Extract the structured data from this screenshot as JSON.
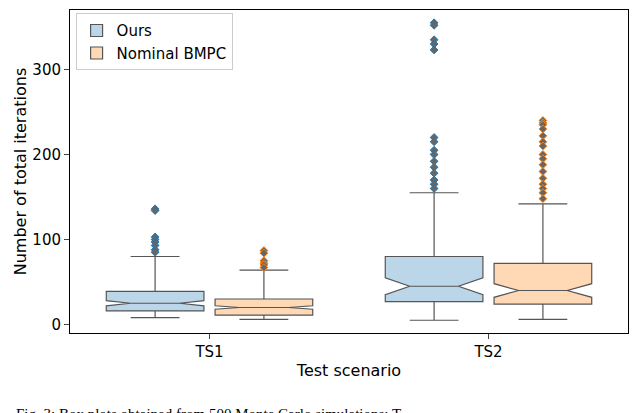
{
  "chart_data": {
    "type": "box",
    "x_label": "Test scenario",
    "y_label": "Number of total iterations",
    "caption": "Fig. 3: Box plots obtained from 500 Monte Carlo simulations: T",
    "categories": [
      "TS1",
      "TS2"
    ],
    "ylim": [
      -10,
      370
    ],
    "yticks": [
      0,
      100,
      200,
      300
    ],
    "grid": false,
    "legend": "upper left",
    "series": [
      {
        "name": "Ours",
        "color": "#1f77b4",
        "marker": "diamond",
        "q1": [
          16,
          27
        ],
        "median": [
          25,
          45
        ],
        "q3": [
          39,
          80
        ],
        "lowerfence": [
          8,
          5
        ],
        "upperfence": [
          80,
          155
        ],
        "notchspan": [
          3,
          10
        ],
        "outliers": [
          [
            136,
            134,
            103,
            100,
            97,
            93,
            88,
            85
          ],
          [
            355,
            352,
            335,
            330,
            323,
            220,
            215,
            205,
            200,
            192,
            185,
            178,
            170,
            165,
            160
          ]
        ]
      },
      {
        "name": "Nominal BMPC",
        "color": "#ff7f0e",
        "marker": "diamond",
        "q1": [
          11,
          24
        ],
        "median": [
          20,
          40
        ],
        "q3": [
          30,
          72
        ],
        "lowerfence": [
          6,
          6
        ],
        "upperfence": [
          64,
          142
        ],
        "notchspan": [
          2,
          8
        ],
        "outliers": [
          [
            87,
            84,
            75,
            72,
            70,
            67
          ],
          [
            240,
            237,
            235,
            230,
            222,
            215,
            210,
            200,
            195,
            188,
            180,
            172,
            165,
            160,
            155,
            148
          ]
        ]
      }
    ]
  }
}
